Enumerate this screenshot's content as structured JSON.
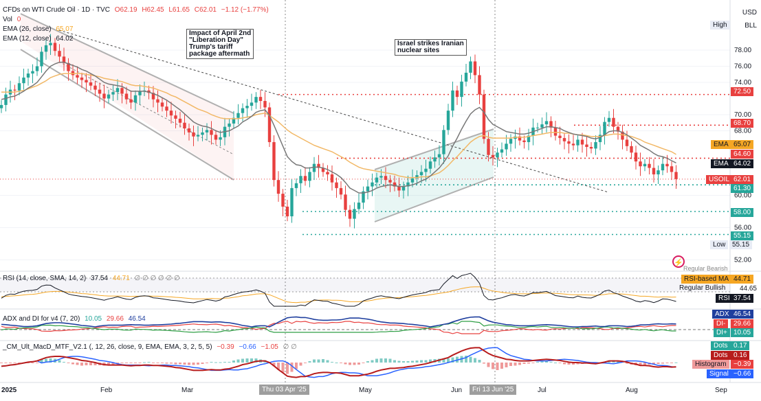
{
  "header": {
    "symbol_line": "CFDs on WTI Crude Oil · 1D · TVC",
    "o": "O62.19",
    "h": "H62.45",
    "l": "L61.65",
    "c": "C62.01",
    "chg": "−1.12 (−1.77%)",
    "vol_label": "Vol",
    "vol_value": "0",
    "ema26_label": "EMA (26, close)",
    "ema26_value": "65.07",
    "ema12_label": "EMA (12, close)",
    "ema12_value": "64.02"
  },
  "scale": {
    "currency": "USD",
    "unit": "BLL",
    "high_label": "High",
    "low_label": "Low",
    "low_value": "55.15"
  },
  "annotations": {
    "april": [
      "Impact of April 2nd",
      "\"Liberation Day\"",
      "Trump's tariff",
      "package aftermath"
    ],
    "israel": [
      "Israel strikes Iranian",
      "nuclear sites"
    ]
  },
  "price_tags": {
    "ema": "EMA",
    "ema26": "65.07",
    "ema12": "64.02",
    "usoil": "USOIL",
    "usoil_price": "62.01",
    "levels": [
      "72.50",
      "68.70",
      "64.60",
      "61.30",
      "58.00",
      "55.15"
    ]
  },
  "rsi": {
    "legend": "RSI (14, close, SMA, 14, 2)",
    "v1": "37.54",
    "v2": "44.71",
    "dots": "∅ ∅ ∅ ∅ ∅ ∅",
    "regular_bearish": "Regular Bearish",
    "ma_label": "RSI-based MA",
    "ma_value": "44.71",
    "level_value": "44.65",
    "regular_bullish": "Regular Bullish",
    "rsi_label": "RSI",
    "rsi_value": "37.54"
  },
  "adx": {
    "legend": "ADX and DI for v4 (7, 20)",
    "v1": "10.05",
    "v2": "29.66",
    "v3": "46.54",
    "adx_label": "ADX",
    "adx_value": "46.54",
    "dim_label": "DI-",
    "dim_value": "29.66",
    "dip_label": "DI+",
    "dip_value": "10.05"
  },
  "macd": {
    "legend": "_CM_Ult_MacD_MTF_V2.1 (, 12, 26, close, 9, EMA, EMA, 3, 2, 5, 5)",
    "v1": "−0.39",
    "v2": "−0.66",
    "v3": "−1.05",
    "dots": "∅ ∅",
    "dots_g_label": "Dots",
    "dots_g_value": "0.17",
    "dots_r_label": "Dots",
    "dots_r_value": "0.16",
    "hist_label": "Histogram",
    "hist_value": "−0.39",
    "signal_label": "Signal",
    "signal_value": "−0.66"
  },
  "x_axis": {
    "labels": [
      "2025",
      "Feb",
      "Mar",
      "May",
      "Jun",
      "Jul",
      "Aug",
      "Sep"
    ],
    "crosshair_1": "Thu 03 Apr '25",
    "crosshair_2": "Fri 13 Jun '25"
  },
  "colors": {
    "up": "#26a69a",
    "down": "#e8403f",
    "ema12": "#777777",
    "ema26": "#f2b866",
    "level_red": "#e8403f",
    "level_green": "#26a69a"
  },
  "chart_data": {
    "type": "candlestick",
    "title": "CFDs on WTI Crude Oil · 1D · TVC",
    "y_range": [
      50,
      80
    ],
    "y_ticks": [
      52,
      56,
      60,
      68,
      70,
      74,
      76,
      78
    ],
    "close": [
      71.2,
      72.5,
      73.1,
      73.0,
      73.9,
      74.6,
      75.1,
      75.4,
      76.0,
      77.8,
      78.6,
      78.9,
      77.9,
      77.2,
      76.4,
      75.4,
      74.9,
      74.6,
      74.3,
      74.0,
      73.6,
      73.1,
      72.6,
      72.0,
      72.5,
      72.8,
      73.3,
      72.6,
      71.9,
      71.5,
      72.4,
      72.9,
      73.0,
      72.7,
      71.9,
      71.5,
      71.0,
      70.5,
      69.9,
      69.5,
      69.0,
      68.3,
      67.8,
      67.3,
      67.5,
      67.8,
      68.1,
      67.5,
      66.9,
      67.2,
      68.5,
      68.9,
      69.6,
      70.2,
      70.8,
      71.1,
      71.5,
      72.2,
      71.7,
      70.9,
      66.6,
      61.9,
      60.2,
      58.6,
      57.4,
      60.9,
      61.5,
      62.4,
      61.8,
      62.9,
      63.9,
      63.4,
      62.9,
      62.6,
      61.6,
      60.9,
      60.1,
      58.2,
      57.1,
      58.3,
      59.1,
      60.5,
      61.1,
      61.6,
      62.2,
      62.4,
      61.9,
      61.6,
      61.1,
      60.6,
      61.1,
      61.6,
      62.1,
      62.5,
      62.9,
      63.3,
      64.2,
      64.7,
      65.1,
      68.1,
      70.5,
      73.0,
      72.2,
      74.1,
      75.2,
      76.6,
      74.9,
      72.5,
      67.0,
      65.0,
      64.7,
      65.3,
      65.7,
      66.4,
      67.0,
      67.3,
      66.8,
      66.6,
      67.4,
      68.4,
      68.4,
      68.8,
      69.2,
      68.4,
      67.4,
      67.1,
      66.7,
      66.4,
      66.2,
      66.9,
      66.3,
      66.0,
      65.8,
      66.6,
      67.5,
      69.1,
      69.6,
      68.5,
      67.9,
      66.9,
      66.1,
      65.3,
      64.2,
      63.6,
      63.9,
      63.4,
      62.6,
      63.1,
      63.9,
      63.6,
      62.9,
      62.01
    ],
    "ema12": [
      71.9,
      72.0,
      72.2,
      72.3,
      72.6,
      72.9,
      73.3,
      73.6,
      74.0,
      74.7,
      75.4,
      76.0,
      76.3,
      76.5,
      76.5,
      76.3,
      76.1,
      75.9,
      75.6,
      75.4,
      75.1,
      74.8,
      74.4,
      74.0,
      73.8,
      73.7,
      73.6,
      73.5,
      73.2,
      72.9,
      72.9,
      72.9,
      72.9,
      72.8,
      72.6,
      72.4,
      72.1,
      71.8,
      71.4,
      71.0,
      70.6,
      70.1,
      69.6,
      69.1,
      68.8,
      68.6,
      68.5,
      68.3,
      68.0,
      67.8,
      67.9,
      68.0,
      68.3,
      68.6,
      69.1,
      69.4,
      69.8,
      70.3,
      70.5,
      70.6,
      69.9,
      68.7,
      67.4,
      66.1,
      64.8,
      64.2,
      63.8,
      63.7,
      63.4,
      63.4,
      63.5,
      63.5,
      63.4,
      63.2,
      62.9,
      62.6,
      62.2,
      61.6,
      60.9,
      60.6,
      60.3,
      60.3,
      60.4,
      60.6,
      60.9,
      61.1,
      61.2,
      61.3,
      61.2,
      61.1,
      61.1,
      61.2,
      61.3,
      61.5,
      61.8,
      62.0,
      62.4,
      62.9,
      63.4,
      64.1,
      64.9,
      66.1,
      67.1,
      68.2,
      69.2,
      70.1,
      70.6,
      70.9,
      70.3,
      69.4,
      68.8,
      68.5,
      68.2,
      67.9,
      67.8,
      67.7,
      67.6,
      67.6,
      67.7,
      67.9,
      68.1,
      68.3,
      68.5,
      68.5,
      68.4,
      68.3,
      68.0,
      67.8,
      67.6,
      67.5,
      67.4,
      67.3,
      67.1,
      67.0,
      67.2,
      67.5,
      67.9,
      68.0,
      68.0,
      67.8,
      67.5,
      67.1,
      66.7,
      66.2,
      65.9,
      65.6,
      65.2,
      64.9,
      64.8,
      64.6,
      64.3,
      64.02
    ],
    "ema26": [
      72.8,
      72.8,
      72.8,
      72.8,
      72.9,
      73.0,
      73.2,
      73.4,
      73.6,
      73.9,
      74.2,
      74.6,
      74.8,
      75.0,
      75.1,
      75.1,
      75.1,
      75.1,
      75.1,
      75.0,
      74.9,
      74.8,
      74.7,
      74.5,
      74.4,
      74.3,
      74.2,
      74.1,
      73.9,
      73.7,
      73.6,
      73.6,
      73.5,
      73.4,
      73.3,
      73.1,
      72.9,
      72.7,
      72.4,
      72.2,
      71.9,
      71.6,
      71.3,
      71.0,
      70.7,
      70.5,
      70.3,
      70.0,
      69.8,
      69.6,
      69.5,
      69.5,
      69.5,
      69.5,
      69.6,
      69.7,
      69.8,
      70.0,
      70.1,
      70.2,
      69.9,
      69.5,
      69.1,
      68.6,
      68.1,
      67.7,
      67.4,
      67.1,
      66.8,
      66.5,
      66.2,
      66.0,
      65.8,
      65.6,
      65.4,
      65.1,
      64.8,
      64.5,
      64.1,
      63.8,
      63.5,
      63.3,
      63.2,
      63.1,
      63.0,
      62.9,
      62.8,
      62.7,
      62.6,
      62.4,
      62.3,
      62.2,
      62.2,
      62.2,
      62.3,
      62.3,
      62.4,
      62.6,
      62.8,
      63.2,
      63.7,
      64.3,
      64.8,
      65.4,
      66.0,
      66.6,
      67.0,
      67.3,
      67.4,
      67.2,
      67.1,
      67.1,
      67.1,
      67.1,
      67.1,
      67.2,
      67.2,
      67.2,
      67.3,
      67.4,
      67.5,
      67.6,
      67.7,
      67.8,
      67.8,
      67.8,
      67.7,
      67.7,
      67.6,
      67.5,
      67.5,
      67.4,
      67.3,
      67.3,
      67.3,
      67.4,
      67.5,
      67.6,
      67.6,
      67.5,
      67.4,
      67.3,
      67.1,
      66.9,
      66.6,
      66.4,
      66.2,
      66.0,
      65.8,
      65.6,
      65.4,
      65.07
    ],
    "levels": [
      72.5,
      68.7,
      64.6,
      61.3,
      58.0,
      55.15
    ],
    "rsi": [
      37.54
    ],
    "rsi_ma": [
      44.71
    ],
    "adx": [
      46.54
    ],
    "di_minus": [
      29.66
    ],
    "di_plus": [
      10.05
    ],
    "macd_histogram": [
      -0.39
    ],
    "macd_signal": [
      -0.66
    ]
  }
}
